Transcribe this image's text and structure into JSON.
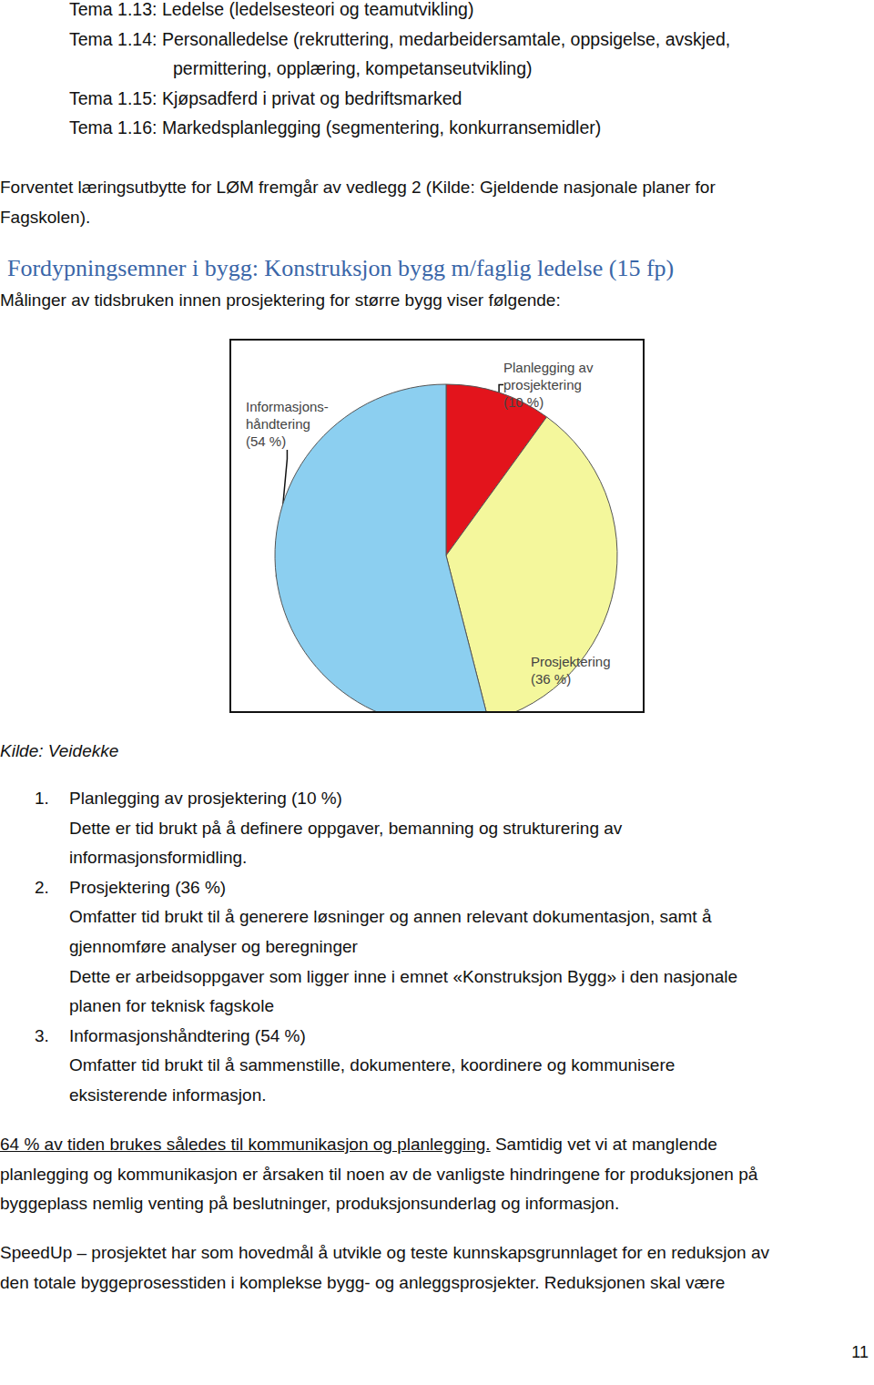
{
  "topics": [
    "Tema 1.13: Ledelse (ledelsesteori og teamutvikling)",
    "Tema 1.14: Personalledelse (rekruttering, medarbeidersamtale, oppsigelse, avskjed,",
    "permittering, opplæring, kompetanseutvikling)",
    "Tema 1.15: Kjøpsadferd i privat og bedriftsmarked",
    "Tema 1.16: Markedsplanlegging (segmentering, konkurransemidler)"
  ],
  "intro": [
    "Forventet læringsutbytte for LØM fremgår av vedlegg 2 (Kilde: Gjeldende nasjonale planer for",
    "Fagskolen)."
  ],
  "heading": "Fordypningsemner i bygg: Konstruksjon bygg m/faglig ledelse (15 fp)",
  "lead": "Målinger av tidsbruken innen prosjektering for større bygg viser følgende:",
  "chart_data": {
    "type": "pie",
    "categories": [
      "Planlegging av prosjektering",
      "Prosjektering",
      "Informasjonshåndtering"
    ],
    "values": [
      10,
      36,
      54
    ],
    "value_labels": [
      "Planlegging av\nprosjektering\n(10 %)",
      "Prosjektering\n(36 %)",
      "Informasjons-\nhåndtering\n(54 %)"
    ],
    "colors": [
      "#e3141c",
      "#f4f79c",
      "#8ccff0"
    ],
    "data_labels": true,
    "legend": "none"
  },
  "source": "Kilde: Veidekke",
  "list": [
    {
      "number": "1.",
      "lines": [
        "Planlegging av prosjektering (10 %)",
        "Dette er tid brukt på å definere oppgaver, bemanning og strukturering av",
        "informasjonsformidling."
      ]
    },
    {
      "number": "2.",
      "lines": [
        "Prosjektering (36 %)",
        "Omfatter tid brukt til å generere løsninger og annen relevant dokumentasjon, samt å",
        "gjennomføre analyser og beregninger",
        "Dette er arbeidsoppgaver som ligger inne i emnet «Konstruksjon Bygg» i den nasjonale",
        "planen for teknisk fagskole"
      ]
    },
    {
      "number": "3.",
      "lines": [
        "Informasjonshåndtering (54 %)",
        "Omfatter tid brukt til å sammenstille, dokumentere, koordinere og kommunisere",
        "eksisterende informasjon."
      ]
    }
  ],
  "paragraphs": [
    {
      "lines": [
        [
          {
            "text": "64 % av tiden brukes således til kommunikasjon og planlegging.",
            "underline": true
          },
          {
            "text": " Samtidig vet vi at manglende",
            "underline": false
          }
        ],
        [
          {
            "text": "planlegging og kommunikasjon er årsaken til noen av de vanligste hindringene for produksjonen på",
            "underline": false
          }
        ],
        [
          {
            "text": "byggeplass nemlig venting på beslutninger, produksjonsunderlag og informasjon.",
            "underline": false
          }
        ]
      ]
    },
    {
      "lines": [
        [
          {
            "text": "SpeedUp – prosjektet har som hovedmål å utvikle og teste kunnskapsgrunnlaget for en reduksjon av",
            "underline": false
          }
        ],
        [
          {
            "text": "den totale byggeprosesstiden i komplekse bygg- og anleggsprosjekter. Reduksjonen skal være",
            "underline": false
          }
        ]
      ]
    }
  ],
  "page_number": "11"
}
